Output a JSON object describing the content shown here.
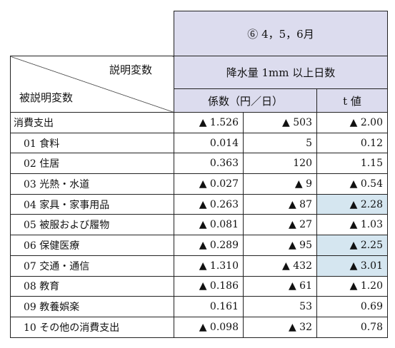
{
  "header": {
    "period": "⑥ 4，5，6月",
    "explanatory": "説明変数",
    "explained": "被説明変数",
    "variable": "降水量 1mm 以上日数",
    "coef": "係数（円／日）",
    "t": "t 値"
  },
  "highlight_color": "#d5e6f0",
  "rows": [
    {
      "label": "消費支出",
      "coef": "▲ 1.526",
      "yen": "▲ 503",
      "t": "▲ 2.00",
      "t_highlight": false
    },
    {
      "label": "01 食料",
      "coef": "0.014",
      "yen": "5",
      "t": "0.12",
      "t_highlight": false
    },
    {
      "label": "02 住居",
      "coef": "0.363",
      "yen": "120",
      "t": "1.15",
      "t_highlight": false
    },
    {
      "label": "03 光熱・水道",
      "coef": "▲ 0.027",
      "yen": "▲ 9",
      "t": "▲ 0.54",
      "t_highlight": false
    },
    {
      "label": "04 家具・家事用品",
      "coef": "▲ 0.263",
      "yen": "▲ 87",
      "t": "▲ 2.28",
      "t_highlight": true
    },
    {
      "label": "05 被服および履物",
      "coef": "▲ 0.081",
      "yen": "▲ 27",
      "t": "▲ 1.03",
      "t_highlight": false
    },
    {
      "label": "06 保健医療",
      "coef": "▲ 0.289",
      "yen": "▲ 95",
      "t": "▲ 2.25",
      "t_highlight": true
    },
    {
      "label": "07 交通・通信",
      "coef": "▲ 1.310",
      "yen": "▲ 432",
      "t": "▲ 3.01",
      "t_highlight": true
    },
    {
      "label": "08 教育",
      "coef": "▲ 0.186",
      "yen": "▲ 61",
      "t": "▲ 1.20",
      "t_highlight": false
    },
    {
      "label": "09 教養娯楽",
      "coef": "0.161",
      "yen": "53",
      "t": "0.69",
      "t_highlight": false
    },
    {
      "label": "10 その他の消費支出",
      "coef": "▲ 0.098",
      "yen": "▲ 32",
      "t": "0.78",
      "t_highlight": false
    }
  ]
}
